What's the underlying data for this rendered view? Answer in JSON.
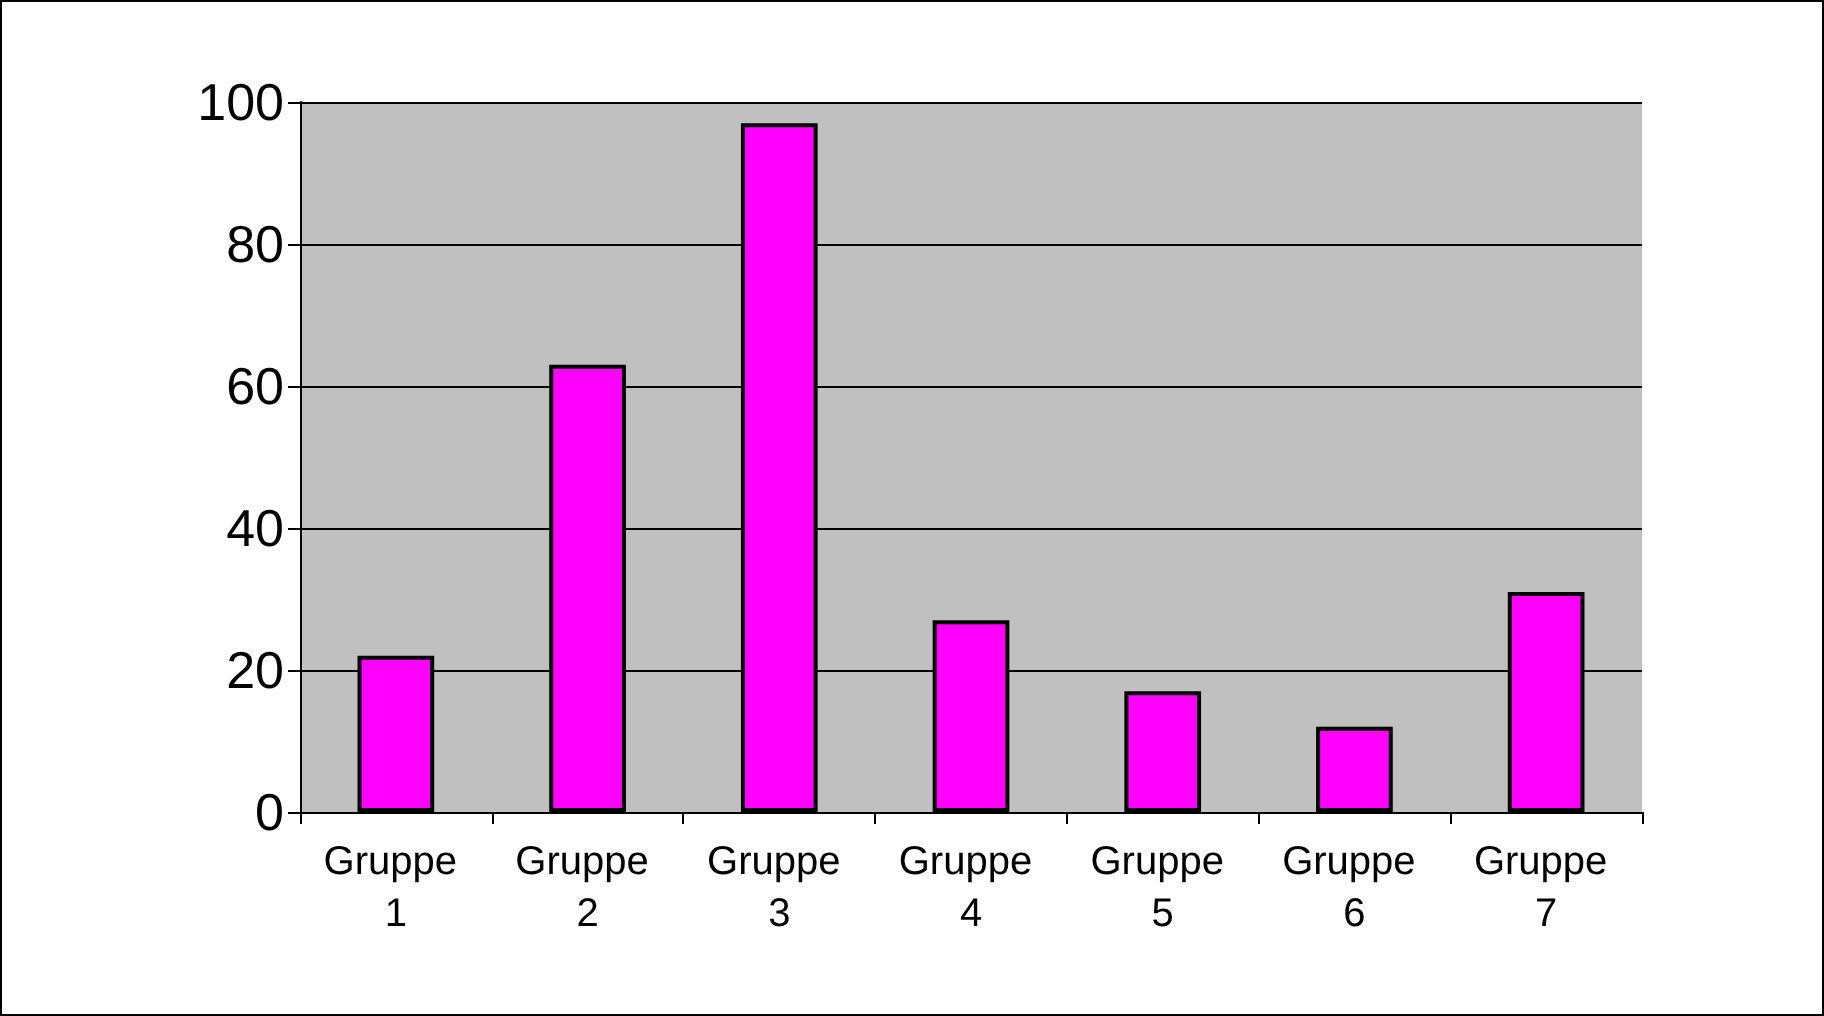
{
  "chart_data": {
    "type": "bar",
    "categories": [
      "Gruppe 1",
      "Gruppe 2",
      "Gruppe 3",
      "Gruppe 4",
      "Gruppe 5",
      "Gruppe 6",
      "Gruppe 7"
    ],
    "values": [
      22,
      63,
      97,
      27,
      17,
      12,
      31
    ],
    "color": "#ff00ff",
    "ylim": [
      0,
      100
    ],
    "yticks": [
      0,
      20,
      40,
      60,
      80,
      100
    ],
    "grid": "y"
  }
}
